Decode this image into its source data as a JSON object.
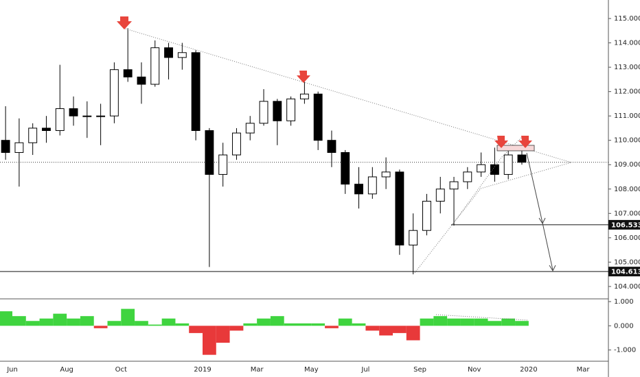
{
  "chart_data": [
    {
      "type": "candlestick",
      "categories": [
        null,
        "Jun",
        null,
        null,
        null,
        "Aug",
        null,
        null,
        null,
        "Oct",
        null,
        null,
        null,
        null,
        null,
        "2019",
        null,
        null,
        null,
        "Mar",
        null,
        null,
        null,
        "May",
        null,
        null,
        null,
        "Jul",
        null,
        null,
        null,
        "Sep",
        null,
        null,
        null,
        "Nov",
        null,
        null,
        null,
        "2020",
        null,
        null,
        null,
        "Mar",
        null
      ],
      "open": [
        110.0,
        109.5,
        109.9,
        110.5,
        110.4,
        111.3,
        111.0,
        111.0,
        111.0,
        112.9,
        112.6,
        112.3,
        113.8,
        113.4,
        113.6,
        110.4,
        108.6,
        109.4,
        110.3,
        110.7,
        111.6,
        110.8,
        111.7,
        111.9,
        110.0,
        109.5,
        108.2,
        107.8,
        108.5,
        108.7,
        105.7,
        106.3,
        107.5,
        108.0,
        108.3,
        108.7,
        109.0,
        108.6,
        109.4,
        null,
        null,
        null,
        null,
        null,
        null
      ],
      "high": [
        111.4,
        110.9,
        110.7,
        111.0,
        113.1,
        111.8,
        111.6,
        111.5,
        113.2,
        114.6,
        113.2,
        114.1,
        114.0,
        114.0,
        113.7,
        110.5,
        109.9,
        110.5,
        111.0,
        112.1,
        111.7,
        111.8,
        112.4,
        112.0,
        110.4,
        109.6,
        108.9,
        108.9,
        109.3,
        108.8,
        107.0,
        107.8,
        108.5,
        108.5,
        108.9,
        109.5,
        109.7,
        109.7,
        109.7,
        null,
        null,
        null,
        null,
        null,
        null
      ],
      "low": [
        109.2,
        108.1,
        109.4,
        109.9,
        110.2,
        110.6,
        110.1,
        109.8,
        110.7,
        112.4,
        111.5,
        112.2,
        112.5,
        112.9,
        110.0,
        104.8,
        108.1,
        109.2,
        110.0,
        110.6,
        109.8,
        110.6,
        111.5,
        109.6,
        108.9,
        107.8,
        107.2,
        107.6,
        108.0,
        105.3,
        104.5,
        106.1,
        107.0,
        106.5,
        108.0,
        108.5,
        108.3,
        108.4,
        109.0,
        null,
        null,
        null,
        null,
        null,
        null
      ],
      "close": [
        109.5,
        109.9,
        110.5,
        110.4,
        111.3,
        111.0,
        111.0,
        111.0,
        112.9,
        112.6,
        112.3,
        113.8,
        113.4,
        113.6,
        110.4,
        108.6,
        109.4,
        110.3,
        110.7,
        111.6,
        110.8,
        111.7,
        111.9,
        110.0,
        109.5,
        108.2,
        107.8,
        108.5,
        108.7,
        105.7,
        106.3,
        107.5,
        108.0,
        108.3,
        108.7,
        109.0,
        108.6,
        109.4,
        109.1,
        null,
        null,
        null,
        null,
        null,
        null
      ],
      "up_color": "#ffffff",
      "down_color": "#000000",
      "ylim": [
        103.52,
        115.76
      ],
      "yticks": [
        {
          "value": 104,
          "label": "104.000"
        },
        {
          "value": 105,
          "label": "105.000"
        },
        {
          "value": 106,
          "label": "106.000"
        },
        {
          "value": 107,
          "label": "107.000"
        },
        {
          "value": 108,
          "label": "108.000"
        },
        {
          "value": 109,
          "label": "109.000"
        },
        {
          "value": 110,
          "label": "110.000"
        },
        {
          "value": 111,
          "label": "111.000"
        },
        {
          "value": 112,
          "label": "112.000"
        },
        {
          "value": 113,
          "label": "113.000"
        },
        {
          "value": 114,
          "label": "114.000"
        },
        {
          "value": 115,
          "label": "115.000"
        }
      ],
      "levels": [
        106.533,
        104.613
      ],
      "support_line": 109.1
    },
    {
      "type": "histogram",
      "values": [
        0.6,
        0.4,
        0.2,
        0.3,
        0.5,
        0.3,
        0.4,
        -0.1,
        0.2,
        0.7,
        0.2,
        0.05,
        0.3,
        0.1,
        -0.3,
        -1.2,
        -0.7,
        -0.2,
        0.1,
        0.3,
        0.4,
        0.1,
        0.1,
        0.1,
        -0.1,
        0.3,
        0.1,
        -0.2,
        -0.4,
        -0.3,
        -0.6,
        0.3,
        0.4,
        0.3,
        0.3,
        0.3,
        0.2,
        0.3,
        0.2,
        null,
        null,
        null,
        null,
        null,
        null
      ],
      "positive_color": "#3fd43f",
      "negative_color": "#e8393a",
      "ylim": [
        -1.465,
        1.085
      ],
      "yticks": [
        {
          "value": 1,
          "label": "1.000"
        },
        {
          "value": 0,
          "label": "0.000"
        },
        {
          "value": -1,
          "label": "-1.000"
        }
      ]
    }
  ]
}
